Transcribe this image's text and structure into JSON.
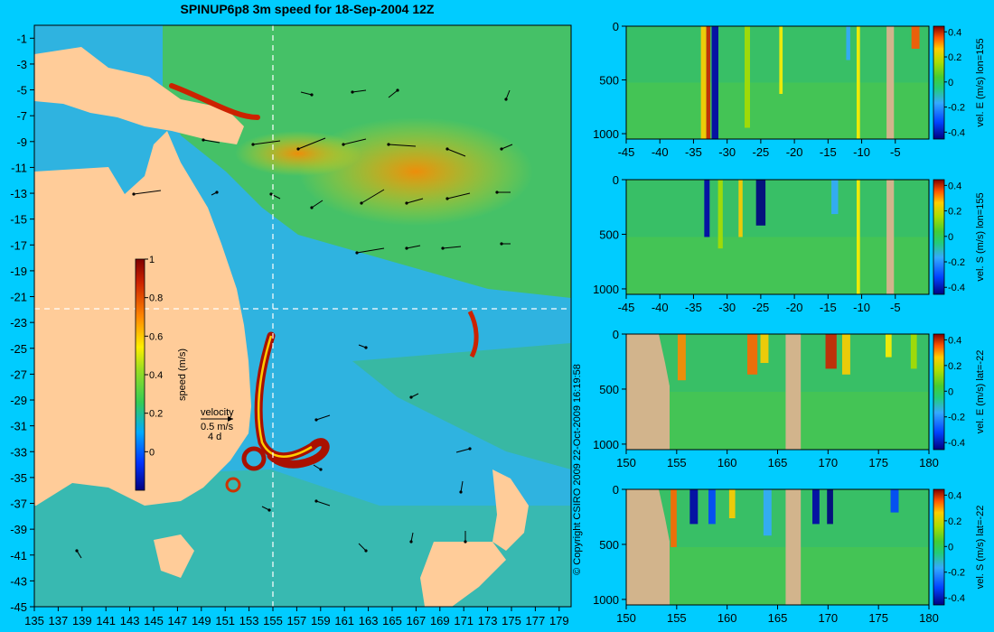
{
  "title": "SPINUP6p8 3m speed for 18-Sep-2004 12Z",
  "copyright": "© Copyright CSIRO 2009   22-Oct-2009 16:19:58",
  "velocity_key": {
    "label": "velocity",
    "speed": "0.5 m/s",
    "duration": "4 d"
  },
  "chart_data": [
    {
      "type": "heatmap",
      "name": "map",
      "x_ticks": [
        135,
        137,
        139,
        141,
        143,
        145,
        147,
        149,
        151,
        153,
        155,
        157,
        159,
        161,
        163,
        165,
        167,
        169,
        171,
        173,
        175,
        177,
        179
      ],
      "y_ticks": [
        -1,
        -3,
        -5,
        -7,
        -9,
        -11,
        -13,
        -15,
        -17,
        -19,
        -21,
        -23,
        -25,
        -27,
        -29,
        -31,
        -33,
        -35,
        -37,
        -39,
        -41,
        -43,
        -45
      ],
      "xlim": [
        135,
        180
      ],
      "ylim": [
        -45,
        0
      ],
      "colorbar": {
        "label": "speed (m/s)",
        "ticks": [
          0,
          0.2,
          0.4,
          0.6,
          0.8,
          1
        ],
        "range": [
          -0.2,
          1
        ]
      },
      "section_lines": {
        "lon": 155,
        "lat": -22
      }
    },
    {
      "type": "heatmap",
      "name": "section-1",
      "xlim": [
        -45,
        0
      ],
      "x_ticks": [
        -45,
        -40,
        -35,
        -30,
        -25,
        -20,
        -15,
        -10,
        -5
      ],
      "ylim": [
        1050,
        0
      ],
      "y_ticks": [
        0,
        500,
        1000
      ],
      "colorbar": {
        "label": "vel. E (m/s) lon=155",
        "ticks": [
          0.4,
          0.2,
          0,
          -0.2,
          -0.4
        ]
      }
    },
    {
      "type": "heatmap",
      "name": "section-2",
      "xlim": [
        -45,
        0
      ],
      "x_ticks": [
        -45,
        -40,
        -35,
        -30,
        -25,
        -20,
        -15,
        -10,
        -5
      ],
      "ylim": [
        1050,
        0
      ],
      "y_ticks": [
        0,
        500,
        1000
      ],
      "colorbar": {
        "label": "vel. S (m/s) lon=155",
        "ticks": [
          0.4,
          0.2,
          0,
          -0.2,
          -0.4
        ]
      }
    },
    {
      "type": "heatmap",
      "name": "section-3",
      "xlim": [
        150,
        180
      ],
      "x_ticks": [
        150,
        155,
        160,
        165,
        170,
        175,
        180
      ],
      "ylim": [
        1050,
        0
      ],
      "y_ticks": [
        0,
        500,
        1000
      ],
      "colorbar": {
        "label": "vel. E (m/s) lat=-22",
        "ticks": [
          0.4,
          0.2,
          0,
          -0.2,
          -0.4
        ]
      }
    },
    {
      "type": "heatmap",
      "name": "section-4",
      "xlim": [
        150,
        180
      ],
      "x_ticks": [
        150,
        155,
        160,
        165,
        170,
        175,
        180
      ],
      "ylim": [
        1050,
        0
      ],
      "y_ticks": [
        0,
        500,
        1000
      ],
      "colorbar": {
        "label": "vel. S (m/s) lat=-22",
        "ticks": [
          0.4,
          0.2,
          0,
          -0.2,
          -0.4
        ]
      }
    }
  ]
}
